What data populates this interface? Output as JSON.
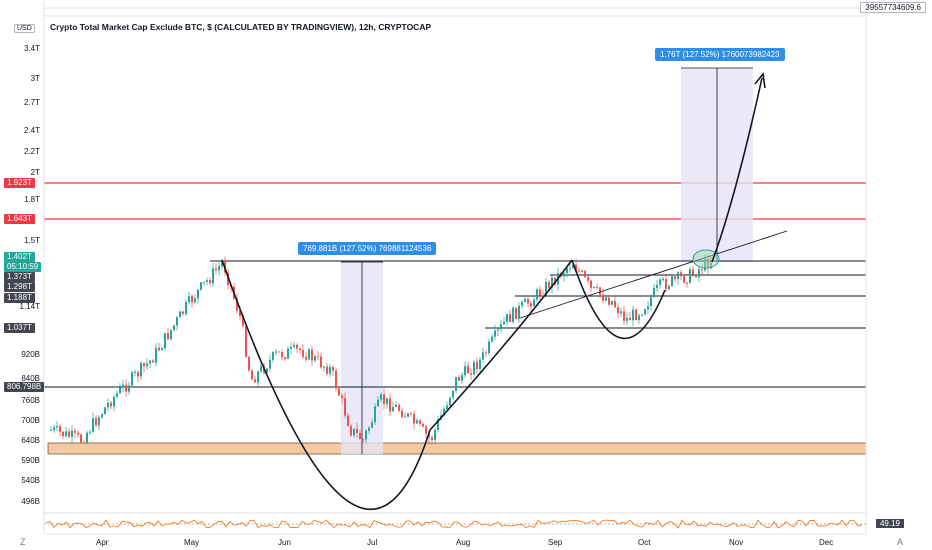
{
  "chart": {
    "title": "Crypto Total Market Cap Exclude BTC, $ (CALCULATED BY TRADINGVIEW), 12h, CRYPTOCAP",
    "currency": "USD",
    "top_indicator_value": "39557734609.6",
    "rsi_value": "49.19",
    "corner_left": "Z",
    "corner_right": "A"
  },
  "y_axis": {
    "labels": [
      "3.4T",
      "3T",
      "2.7T",
      "2.4T",
      "2.2T",
      "2T",
      "1.8T",
      "1.5T",
      "1.14T",
      "920B",
      "840B",
      "760B",
      "700B",
      "640B",
      "590B",
      "540B",
      "496B"
    ]
  },
  "x_axis": {
    "labels": [
      "Apr",
      "May",
      "Jun",
      "Jul",
      "Aug",
      "Sep",
      "Oct",
      "Nov",
      "Dec"
    ]
  },
  "price_tags": {
    "red_top": "1.923T",
    "red_mid": "1.643T",
    "current": "1.402T",
    "countdown": "05:10:59",
    "l1": "1.373T",
    "l2": "1.298T",
    "l3": "1.188T",
    "l4": "1.037T",
    "l5": "806.798B"
  },
  "callouts": {
    "left": "769.881B (127.52%) 769881124536",
    "right": "1.76T (127.52%) 1760073982423"
  },
  "colors": {
    "up": "#26a69a",
    "down": "#ef5350",
    "red_line": "#f23645",
    "support_fill": "#f7c9a0",
    "measure_fill": "#e4e4f5",
    "callout": "#2f8fe8"
  }
}
